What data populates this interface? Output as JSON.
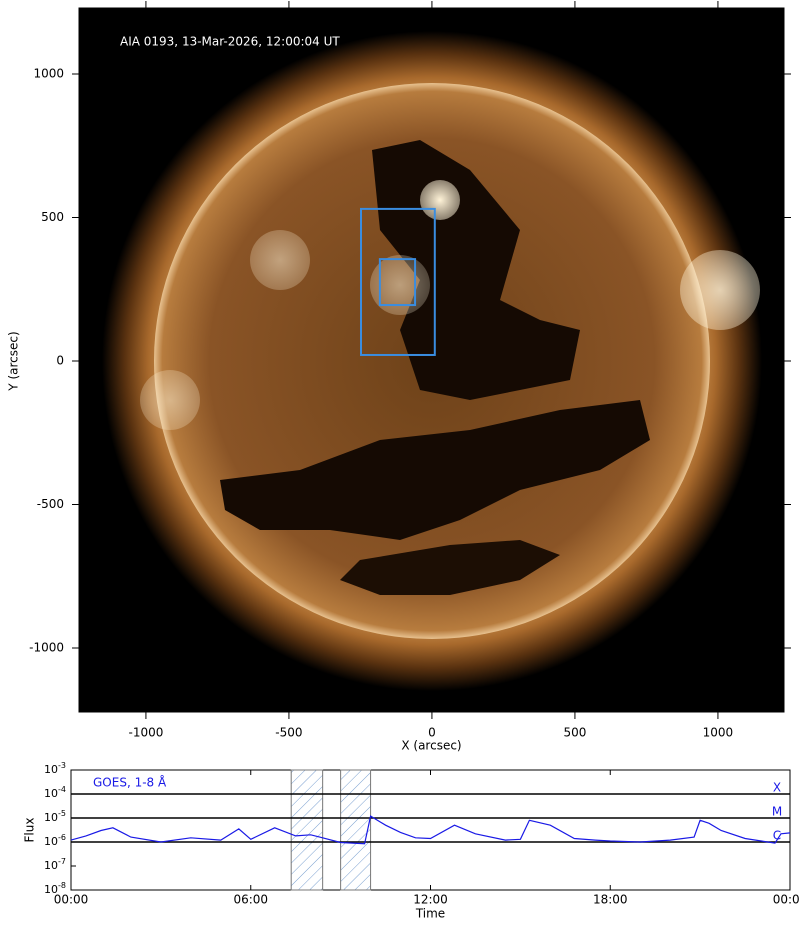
{
  "chart_data": [
    {
      "type": "image",
      "annotation": "AIA 0193, 13-Mar-2026, 12:00:04 UT",
      "xlabel": "X (arcsec)",
      "ylabel": "Y (arcsec)",
      "xlim": [
        -1234,
        1231
      ],
      "ylim": [
        -1223,
        1230
      ],
      "xticks": [
        -1000,
        -500,
        0,
        500,
        1000
      ],
      "yticks": [
        -1000,
        -500,
        0,
        500,
        1000
      ],
      "region_color": "#3a8de0",
      "regions": [
        {
          "x": [
            -248,
            10
          ],
          "y": [
            21,
            530
          ]
        },
        {
          "x": [
            -182,
            -59
          ],
          "y": [
            195,
            355
          ]
        }
      ]
    },
    {
      "type": "line",
      "legend": "GOES, 1-8 Å",
      "xlabel": "Time",
      "ylabel": "Flux",
      "ylog": true,
      "color": "#1a1ae6",
      "xlim": [
        0,
        24
      ],
      "ylim": [
        1e-08,
        0.001
      ],
      "xticks": [
        {
          "value": 0,
          "label": "00:00"
        },
        {
          "value": 6,
          "label": "06:00"
        },
        {
          "value": 12,
          "label": "12:00"
        },
        {
          "value": 18,
          "label": "18:00"
        },
        {
          "value": 24,
          "label": "00:00"
        }
      ],
      "yticks": [
        {
          "value": 1e-08,
          "label": "10",
          "exponent": "-8"
        },
        {
          "value": 1e-07,
          "label": "10",
          "exponent": "-7"
        },
        {
          "value": 1e-06,
          "label": "10",
          "exponent": "-6"
        },
        {
          "value": 1e-05,
          "label": "10",
          "exponent": "-5"
        },
        {
          "value": 0.0001,
          "label": "10",
          "exponent": "-4"
        },
        {
          "value": 0.001,
          "label": "10",
          "exponent": "-3"
        }
      ],
      "class_levels": [
        {
          "value": 0.0001,
          "label": "X"
        },
        {
          "value": 1e-05,
          "label": "M"
        },
        {
          "value": 1e-06,
          "label": "C"
        }
      ],
      "shaded_intervals": [
        [
          7.35,
          8.4
        ],
        [
          9.0,
          10.0
        ]
      ],
      "x": [
        0,
        0.5,
        1,
        1.4,
        2,
        3,
        4,
        5,
        5.6,
        6,
        6.8,
        7.5,
        8,
        8.3,
        9,
        9.8,
        10,
        10.5,
        11,
        11.5,
        12,
        12.8,
        13.5,
        14.5,
        15,
        15.3,
        16,
        16.8,
        17.5,
        18,
        19,
        20,
        20.8,
        21,
        21.3,
        21.7,
        22.5,
        23.5,
        23.7,
        24
      ],
      "values": [
        1.2e-06,
        1.8e-06,
        3e-06,
        3.9e-06,
        1.6e-06,
        1e-06,
        1.5e-06,
        1.2e-06,
        3.5e-06,
        1.3e-06,
        3.9e-06,
        1.8e-06,
        2e-06,
        1.6e-06,
        9.5e-07,
        8.5e-07,
        1.2e-05,
        5e-06,
        2.5e-06,
        1.5e-06,
        1.4e-06,
        5e-06,
        2.2e-06,
        1.2e-06,
        1.3e-06,
        8e-06,
        5e-06,
        1.4e-06,
        1.2e-06,
        1.1e-06,
        1e-06,
        1.2e-06,
        1.6e-06,
        8e-06,
        6e-06,
        3e-06,
        1.4e-06,
        9e-07,
        2.2e-06,
        2.4e-06
      ]
    }
  ]
}
